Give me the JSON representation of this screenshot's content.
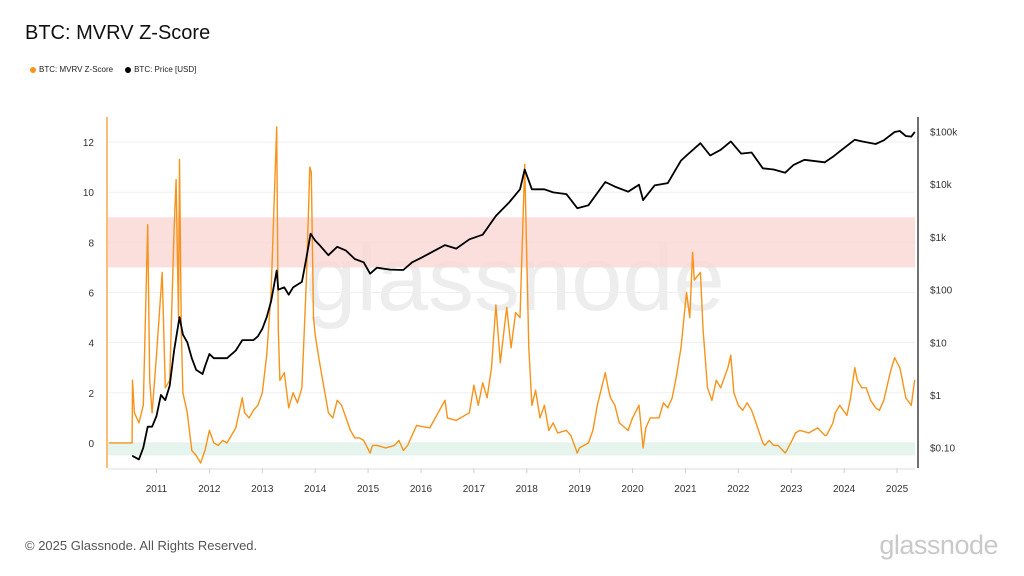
{
  "title": "BTC: MVRV Z-Score",
  "footer": "© 2025 Glassnode. All Rights Reserved.",
  "logo": "glassnode",
  "watermark": "glassnode",
  "chart_data": {
    "type": "line",
    "title": "BTC: MVRV Z-Score",
    "grid": true,
    "legend_position": "top-left",
    "xlim": [
      "2010-02",
      "2025-05"
    ],
    "x_ticks": [
      "2011",
      "2012",
      "2013",
      "2014",
      "2015",
      "2016",
      "2017",
      "2018",
      "2019",
      "2020",
      "2021",
      "2022",
      "2023",
      "2024",
      "2025"
    ],
    "y_left": {
      "ylim": [
        -1,
        13
      ],
      "ticks": [
        "0",
        "2",
        "4",
        "6",
        "8",
        "10",
        "12"
      ],
      "tick_values": [
        0,
        2,
        4,
        6,
        8,
        10,
        12
      ]
    },
    "y_right": {
      "scale": "log",
      "ticks": [
        "$0.10",
        "$1",
        "$10",
        "$100",
        "$1k",
        "$10k",
        "$100k"
      ],
      "tick_values": [
        0.1,
        1,
        10,
        100,
        1000,
        10000,
        100000
      ]
    },
    "bands": [
      {
        "axis": "left",
        "from": 7,
        "to": 9,
        "color": "#f9d7d5"
      },
      {
        "axis": "left",
        "from": -0.5,
        "to": 0,
        "color": "#dff3ea"
      }
    ],
    "series": [
      {
        "name": "BTC: MVRV Z-Score",
        "axis": "left",
        "color": "#f7931a",
        "points": [
          [
            "2010-02-10",
            0
          ],
          [
            "2010-07-15",
            0
          ],
          [
            "2010-07-18",
            2.5
          ],
          [
            "2010-08-01",
            1.2
          ],
          [
            "2010-09-01",
            0.8
          ],
          [
            "2010-10-01",
            1.5
          ],
          [
            "2010-11-01",
            8.7
          ],
          [
            "2010-11-15",
            2.5
          ],
          [
            "2010-12-01",
            1.2
          ],
          [
            "2011-01-01",
            3.5
          ],
          [
            "2011-02-10",
            6.8
          ],
          [
            "2011-03-01",
            2.2
          ],
          [
            "2011-04-01",
            2.5
          ],
          [
            "2011-05-01",
            8.5
          ],
          [
            "2011-05-15",
            10.5
          ],
          [
            "2011-06-01",
            5
          ],
          [
            "2011-06-08",
            11.3
          ],
          [
            "2011-06-20",
            4.5
          ],
          [
            "2011-07-01",
            2
          ],
          [
            "2011-08-01",
            1.2
          ],
          [
            "2011-09-01",
            -0.3
          ],
          [
            "2011-10-01",
            -0.5
          ],
          [
            "2011-11-01",
            -0.8
          ],
          [
            "2011-12-01",
            -0.3
          ],
          [
            "2012-01-01",
            0.5
          ],
          [
            "2012-02-01",
            0
          ],
          [
            "2012-03-01",
            -0.1
          ],
          [
            "2012-04-01",
            0.1
          ],
          [
            "2012-05-01",
            0
          ],
          [
            "2012-06-01",
            0.3
          ],
          [
            "2012-07-01",
            0.6
          ],
          [
            "2012-08-15",
            1.8
          ],
          [
            "2012-09-01",
            1.2
          ],
          [
            "2012-10-01",
            1.0
          ],
          [
            "2012-11-01",
            1.3
          ],
          [
            "2012-12-01",
            1.5
          ],
          [
            "2013-01-01",
            2.0
          ],
          [
            "2013-02-01",
            3.5
          ],
          [
            "2013-03-01",
            6
          ],
          [
            "2013-04-09",
            12.6
          ],
          [
            "2013-04-20",
            4.5
          ],
          [
            "2013-05-01",
            2.5
          ],
          [
            "2013-06-01",
            2.8
          ],
          [
            "2013-07-01",
            1.4
          ],
          [
            "2013-08-01",
            2.0
          ],
          [
            "2013-09-01",
            1.6
          ],
          [
            "2013-10-01",
            2.2
          ],
          [
            "2013-11-01",
            6.5
          ],
          [
            "2013-11-25",
            11.0
          ],
          [
            "2013-12-05",
            10.8
          ],
          [
            "2013-12-20",
            5
          ],
          [
            "2014-01-01",
            4.3
          ],
          [
            "2014-02-01",
            3.2
          ],
          [
            "2014-03-01",
            2.2
          ],
          [
            "2014-04-01",
            1.2
          ],
          [
            "2014-05-01",
            1.0
          ],
          [
            "2014-06-01",
            1.7
          ],
          [
            "2014-07-01",
            1.5
          ],
          [
            "2014-08-01",
            1.0
          ],
          [
            "2014-09-01",
            0.5
          ],
          [
            "2014-10-01",
            0.2
          ],
          [
            "2014-11-01",
            0.2
          ],
          [
            "2014-12-01",
            0.1
          ],
          [
            "2015-01-15",
            -0.4
          ],
          [
            "2015-02-01",
            -0.1
          ],
          [
            "2015-03-01",
            -0.1
          ],
          [
            "2015-05-01",
            -0.2
          ],
          [
            "2015-07-01",
            -0.1
          ],
          [
            "2015-08-01",
            0.1
          ],
          [
            "2015-09-01",
            -0.3
          ],
          [
            "2015-10-01",
            -0.1
          ],
          [
            "2015-11-01",
            0.3
          ],
          [
            "2015-12-01",
            0.7
          ],
          [
            "2016-03-01",
            0.6
          ],
          [
            "2016-06-15",
            1.7
          ],
          [
            "2016-07-01",
            1.0
          ],
          [
            "2016-09-01",
            0.9
          ],
          [
            "2016-12-01",
            1.2
          ],
          [
            "2017-01-01",
            2.3
          ],
          [
            "2017-02-01",
            1.5
          ],
          [
            "2017-03-01",
            2.4
          ],
          [
            "2017-04-01",
            1.8
          ],
          [
            "2017-05-01",
            3.0
          ],
          [
            "2017-06-01",
            5.5
          ],
          [
            "2017-07-01",
            3.2
          ],
          [
            "2017-08-15",
            5.4
          ],
          [
            "2017-09-15",
            3.8
          ],
          [
            "2017-10-15",
            5.2
          ],
          [
            "2017-11-15",
            5
          ],
          [
            "2017-12-17",
            11.1
          ],
          [
            "2018-01-15",
            3.8
          ],
          [
            "2018-02-06",
            1.5
          ],
          [
            "2018-03-01",
            2.1
          ],
          [
            "2018-04-01",
            1.0
          ],
          [
            "2018-05-01",
            1.5
          ],
          [
            "2018-06-01",
            0.5
          ],
          [
            "2018-07-01",
            0.8
          ],
          [
            "2018-08-01",
            0.4
          ],
          [
            "2018-10-01",
            0.5
          ],
          [
            "2018-11-01",
            0.3
          ],
          [
            "2018-12-15",
            -0.4
          ],
          [
            "2019-01-01",
            -0.2
          ],
          [
            "2019-03-01",
            0
          ],
          [
            "2019-04-01",
            0.5
          ],
          [
            "2019-05-01",
            1.5
          ],
          [
            "2019-06-26",
            2.8
          ],
          [
            "2019-07-15",
            2.2
          ],
          [
            "2019-08-01",
            1.8
          ],
          [
            "2019-09-01",
            1.5
          ],
          [
            "2019-10-01",
            0.8
          ],
          [
            "2019-12-01",
            0.5
          ],
          [
            "2020-01-01",
            1.0
          ],
          [
            "2020-02-15",
            1.5
          ],
          [
            "2020-03-13",
            -0.2
          ],
          [
            "2020-04-01",
            0.6
          ],
          [
            "2020-05-01",
            1.0
          ],
          [
            "2020-07-01",
            1.0
          ],
          [
            "2020-08-01",
            1.6
          ],
          [
            "2020-09-01",
            1.4
          ],
          [
            "2020-10-01",
            1.8
          ],
          [
            "2020-11-01",
            2.7
          ],
          [
            "2020-12-01",
            3.8
          ],
          [
            "2021-01-08",
            6
          ],
          [
            "2021-02-01",
            5
          ],
          [
            "2021-02-20",
            7.6
          ],
          [
            "2021-03-01",
            6.5
          ],
          [
            "2021-04-13",
            6.8
          ],
          [
            "2021-05-01",
            4.5
          ],
          [
            "2021-06-01",
            2.2
          ],
          [
            "2021-07-01",
            1.7
          ],
          [
            "2021-08-01",
            2.5
          ],
          [
            "2021-09-01",
            2.2
          ],
          [
            "2021-10-20",
            3.0
          ],
          [
            "2021-11-10",
            3.5
          ],
          [
            "2021-12-01",
            2.0
          ],
          [
            "2022-01-01",
            1.5
          ],
          [
            "2022-02-01",
            1.3
          ],
          [
            "2022-03-01",
            1.6
          ],
          [
            "2022-04-01",
            1.3
          ],
          [
            "2022-05-01",
            0.8
          ],
          [
            "2022-06-18",
            0
          ],
          [
            "2022-07-01",
            -0.1
          ],
          [
            "2022-08-01",
            0.1
          ],
          [
            "2022-09-01",
            -0.1
          ],
          [
            "2022-10-01",
            -0.1
          ],
          [
            "2022-11-20",
            -0.4
          ],
          [
            "2022-12-01",
            -0.3
          ],
          [
            "2023-01-15",
            0.2
          ],
          [
            "2023-02-01",
            0.4
          ],
          [
            "2023-03-01",
            0.5
          ],
          [
            "2023-05-01",
            0.4
          ],
          [
            "2023-06-01",
            0.5
          ],
          [
            "2023-07-01",
            0.6
          ],
          [
            "2023-08-20",
            0.3
          ],
          [
            "2023-09-01",
            0.3
          ],
          [
            "2023-10-15",
            0.8
          ],
          [
            "2023-11-01",
            1.2
          ],
          [
            "2023-12-01",
            1.5
          ],
          [
            "2024-01-20",
            1.1
          ],
          [
            "2024-02-15",
            1.8
          ],
          [
            "2024-03-14",
            3.0
          ],
          [
            "2024-04-01",
            2.5
          ],
          [
            "2024-05-01",
            2.2
          ],
          [
            "2024-06-01",
            2.2
          ],
          [
            "2024-07-01",
            1.7
          ],
          [
            "2024-08-05",
            1.4
          ],
          [
            "2024-09-01",
            1.3
          ],
          [
            "2024-10-01",
            1.7
          ],
          [
            "2024-11-15",
            2.8
          ],
          [
            "2024-12-15",
            3.4
          ],
          [
            "2025-01-20",
            3.0
          ],
          [
            "2025-02-01",
            2.7
          ],
          [
            "2025-03-01",
            1.8
          ],
          [
            "2025-04-08",
            1.5
          ],
          [
            "2025-05-01",
            2.5
          ]
        ]
      },
      {
        "name": "BTC: Price [USD]",
        "axis": "right",
        "color": "#000000",
        "points": [
          [
            "2010-07-18",
            0.07
          ],
          [
            "2010-09-01",
            0.06
          ],
          [
            "2010-10-01",
            0.1
          ],
          [
            "2010-11-01",
            0.25
          ],
          [
            "2010-12-01",
            0.25
          ],
          [
            "2011-01-01",
            0.4
          ],
          [
            "2011-02-01",
            1
          ],
          [
            "2011-03-01",
            0.8
          ],
          [
            "2011-04-01",
            1.5
          ],
          [
            "2011-05-01",
            7
          ],
          [
            "2011-06-08",
            30
          ],
          [
            "2011-07-01",
            14
          ],
          [
            "2011-08-01",
            10
          ],
          [
            "2011-09-01",
            5
          ],
          [
            "2011-10-01",
            3
          ],
          [
            "2011-11-15",
            2.5
          ],
          [
            "2011-12-01",
            3.5
          ],
          [
            "2012-01-01",
            6
          ],
          [
            "2012-02-01",
            5
          ],
          [
            "2012-03-01",
            5
          ],
          [
            "2012-05-01",
            5
          ],
          [
            "2012-07-01",
            7
          ],
          [
            "2012-08-15",
            11
          ],
          [
            "2012-09-01",
            11
          ],
          [
            "2012-10-01",
            11
          ],
          [
            "2012-11-01",
            11
          ],
          [
            "2012-12-01",
            13
          ],
          [
            "2013-01-01",
            18
          ],
          [
            "2013-02-01",
            30
          ],
          [
            "2013-03-01",
            60
          ],
          [
            "2013-04-09",
            230
          ],
          [
            "2013-04-20",
            100
          ],
          [
            "2013-06-01",
            110
          ],
          [
            "2013-07-01",
            80
          ],
          [
            "2013-08-01",
            110
          ],
          [
            "2013-10-01",
            140
          ],
          [
            "2013-11-01",
            400
          ],
          [
            "2013-11-30",
            1150
          ],
          [
            "2014-01-01",
            850
          ],
          [
            "2014-02-01",
            700
          ],
          [
            "2014-04-01",
            450
          ],
          [
            "2014-06-01",
            650
          ],
          [
            "2014-08-01",
            550
          ],
          [
            "2014-10-01",
            380
          ],
          [
            "2014-12-01",
            330
          ],
          [
            "2015-01-15",
            200
          ],
          [
            "2015-03-01",
            260
          ],
          [
            "2015-06-01",
            240
          ],
          [
            "2015-09-01",
            235
          ],
          [
            "2015-11-01",
            330
          ],
          [
            "2016-01-01",
            400
          ],
          [
            "2016-06-15",
            700
          ],
          [
            "2016-09-01",
            600
          ],
          [
            "2016-12-01",
            900
          ],
          [
            "2017-03-01",
            1100
          ],
          [
            "2017-06-01",
            2500
          ],
          [
            "2017-09-01",
            4500
          ],
          [
            "2017-11-15",
            8000
          ],
          [
            "2017-12-17",
            19000
          ],
          [
            "2018-02-06",
            8000
          ],
          [
            "2018-05-01",
            8000
          ],
          [
            "2018-07-01",
            7000
          ],
          [
            "2018-10-01",
            6500
          ],
          [
            "2018-12-15",
            3500
          ],
          [
            "2019-03-01",
            4000
          ],
          [
            "2019-06-26",
            11000
          ],
          [
            "2019-09-01",
            9000
          ],
          [
            "2019-12-01",
            7200
          ],
          [
            "2020-02-15",
            9800
          ],
          [
            "2020-03-13",
            5000
          ],
          [
            "2020-06-01",
            9500
          ],
          [
            "2020-09-01",
            10500
          ],
          [
            "2020-12-01",
            28000
          ],
          [
            "2021-01-08",
            35000
          ],
          [
            "2021-04-13",
            60000
          ],
          [
            "2021-06-20",
            35000
          ],
          [
            "2021-09-01",
            45000
          ],
          [
            "2021-11-10",
            65000
          ],
          [
            "2022-01-20",
            38000
          ],
          [
            "2022-04-01",
            40000
          ],
          [
            "2022-06-18",
            20000
          ],
          [
            "2022-09-01",
            19000
          ],
          [
            "2022-11-20",
            16500
          ],
          [
            "2023-01-15",
            23000
          ],
          [
            "2023-04-01",
            29000
          ],
          [
            "2023-08-20",
            26000
          ],
          [
            "2023-10-20",
            34000
          ],
          [
            "2023-12-01",
            42000
          ],
          [
            "2024-03-14",
            70000
          ],
          [
            "2024-05-01",
            65000
          ],
          [
            "2024-08-05",
            58000
          ],
          [
            "2024-10-01",
            68000
          ],
          [
            "2024-12-15",
            98000
          ],
          [
            "2025-01-20",
            102000
          ],
          [
            "2025-03-01",
            82000
          ],
          [
            "2025-04-08",
            80000
          ],
          [
            "2025-05-01",
            97000
          ]
        ]
      }
    ]
  }
}
